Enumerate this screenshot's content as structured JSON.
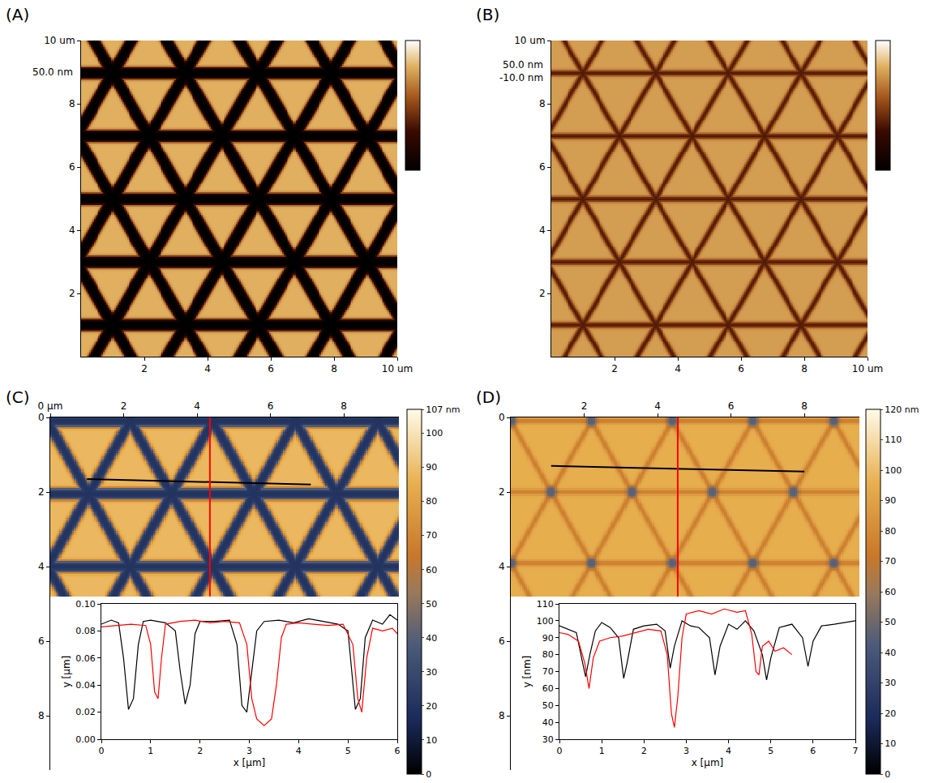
{
  "chart_data": [
    {
      "type": "heatmap",
      "title": "(A)",
      "annotations": [
        "50.0 nm"
      ],
      "xlim": [
        0,
        10
      ],
      "xticks": [
        2,
        4,
        6,
        8,
        {
          "value": 10,
          "label": "10 um"
        }
      ],
      "ylim": [
        0,
        10
      ],
      "yticks": [
        2,
        4,
        6,
        8,
        {
          "value": 10,
          "label": "10 um"
        }
      ],
      "zlim": [
        0,
        50
      ],
      "pattern": {
        "x": [
          0,
          10
        ],
        "y": [
          0,
          10
        ],
        "origin": [
          1,
          1
        ],
        "side": 2.3,
        "groove_width": 0.35,
        "top": 40,
        "groove": 0
      }
    },
    {
      "type": "heatmap",
      "title": "(B)",
      "annotations": [
        "50.0 nm",
        "-10.0 nm"
      ],
      "xlim": [
        0,
        10
      ],
      "xticks": [
        2,
        4,
        6,
        8,
        {
          "value": 10,
          "label": "10 um"
        }
      ],
      "ylim": [
        0,
        10
      ],
      "yticks": [
        2,
        4,
        6,
        8,
        {
          "value": 10,
          "label": "10 um"
        }
      ],
      "zlim": [
        -10,
        50
      ],
      "pattern": {
        "x": [
          0,
          10
        ],
        "y": [
          0,
          10
        ],
        "origin": [
          1,
          1
        ],
        "side": 2.3,
        "groove_width": 0.15,
        "top": 35,
        "groove": 10
      }
    },
    {
      "type": "heatmap",
      "title": "(C)",
      "xlim": [
        0,
        9.5
      ],
      "xticks": [
        {
          "value": 0,
          "label": "0 µm"
        },
        2,
        4,
        6,
        8
      ],
      "ylim": [
        0,
        9.45
      ],
      "yticks": [
        0,
        2,
        4,
        6,
        8
      ],
      "zlim": [
        0,
        107
      ],
      "colorbar_ticks": [
        0,
        10,
        20,
        30,
        40,
        50,
        60,
        70,
        80,
        90,
        100,
        {
          "value": 107,
          "label": "107 nm"
        }
      ],
      "pattern": {
        "x": [
          0,
          9.5
        ],
        "y": [
          0,
          4.8
        ],
        "origin": [
          3.3,
          2.05
        ],
        "side": 2.25,
        "groove_width": 0.3,
        "top": 88,
        "groove": 20
      },
      "profile": {
        "type": "line",
        "xlabel": "x [µm]",
        "ylabel": "y [µm]",
        "xlim": [
          0,
          6
        ],
        "xticks": [
          0,
          1,
          2,
          3,
          4,
          5,
          6
        ],
        "ylim": [
          0,
          0.1
        ],
        "yticks": [
          {
            "value": 0,
            "label": "0.00"
          },
          {
            "value": 0.02,
            "label": "0.02"
          },
          {
            "value": 0.04,
            "label": "0.04"
          },
          {
            "value": 0.06,
            "label": "0.06"
          },
          {
            "value": 0.08,
            "label": "0.08"
          },
          {
            "value": 0.1,
            "label": "0.10"
          }
        ],
        "series": [
          {
            "color": "#000000",
            "line": [
              [
                1.0,
                1.65
              ],
              [
                7.1,
                1.8
              ]
            ],
            "x": [
              0,
              0.2,
              0.35,
              0.45,
              0.55,
              0.65,
              0.75,
              0.85,
              1.0,
              1.3,
              1.5,
              1.6,
              1.7,
              1.8,
              1.9,
              2.0,
              2.3,
              2.6,
              2.75,
              2.85,
              2.95,
              3.05,
              3.15,
              3.3,
              3.6,
              3.9,
              4.2,
              4.5,
              4.8,
              5.0,
              5.1,
              5.15,
              5.25,
              5.35,
              5.5,
              5.7,
              5.85,
              6.0
            ],
            "values": [
              0.085,
              0.088,
              0.086,
              0.06,
              0.022,
              0.03,
              0.07,
              0.087,
              0.088,
              0.086,
              0.08,
              0.05,
              0.026,
              0.04,
              0.078,
              0.087,
              0.087,
              0.088,
              0.07,
              0.025,
              0.02,
              0.05,
              0.08,
              0.087,
              0.088,
              0.086,
              0.089,
              0.087,
              0.085,
              0.08,
              0.04,
              0.022,
              0.03,
              0.075,
              0.088,
              0.085,
              0.092,
              0.088
            ]
          },
          {
            "color": "#ff0000",
            "line": [
              [
                4.35,
                0
              ],
              [
                4.35,
                4.8
              ]
            ],
            "x": [
              0,
              0.3,
              0.6,
              0.9,
              1.0,
              1.08,
              1.15,
              1.22,
              1.3,
              1.6,
              1.9,
              2.2,
              2.5,
              2.8,
              2.95,
              3.05,
              3.15,
              3.3,
              3.45,
              3.55,
              3.65,
              3.75,
              4.0,
              4.3,
              4.6,
              4.9,
              5.1,
              5.2,
              5.28,
              5.38,
              5.5,
              5.7,
              5.9,
              6.0
            ],
            "values": [
              0.083,
              0.084,
              0.085,
              0.084,
              0.07,
              0.035,
              0.03,
              0.06,
              0.085,
              0.087,
              0.088,
              0.086,
              0.087,
              0.086,
              0.07,
              0.03,
              0.015,
              0.01,
              0.015,
              0.04,
              0.075,
              0.085,
              0.086,
              0.085,
              0.084,
              0.085,
              0.07,
              0.03,
              0.02,
              0.06,
              0.082,
              0.08,
              0.082,
              0.078
            ]
          }
        ]
      }
    },
    {
      "type": "heatmap",
      "title": "(D)",
      "xlim": [
        0,
        9.5
      ],
      "xticks": [
        2,
        4,
        6,
        8
      ],
      "ylim": [
        0,
        9.45
      ],
      "yticks": [
        0,
        2,
        4,
        6,
        8
      ],
      "zlim": [
        0,
        120
      ],
      "colorbar_ticks": [
        0,
        10,
        20,
        30,
        40,
        50,
        60,
        70,
        80,
        90,
        100,
        110,
        {
          "value": 120,
          "label": "120 nm"
        }
      ],
      "pattern": {
        "x": [
          0,
          9.5
        ],
        "y": [
          0,
          4.8
        ],
        "origin": [
          3.3,
          2.0
        ],
        "side": 2.2,
        "groove_width": 0.12,
        "top": 95,
        "groove": 72,
        "node": 45,
        "node_width": 0.3
      },
      "profile": {
        "type": "line",
        "xlabel": "x [µm]",
        "ylabel": "y [nm]",
        "xlim": [
          0,
          7
        ],
        "xticks": [
          0,
          1,
          2,
          3,
          4,
          5,
          6,
          7
        ],
        "ylim": [
          30,
          110
        ],
        "yticks": [
          30,
          40,
          50,
          60,
          70,
          80,
          90,
          100,
          110
        ],
        "series": [
          {
            "color": "#000000",
            "line": [
              [
                1.1,
                1.3
              ],
              [
                8.0,
                1.45
              ]
            ],
            "x": [
              0,
              0.2,
              0.4,
              0.55,
              0.62,
              0.72,
              0.85,
              1.0,
              1.2,
              1.4,
              1.52,
              1.6,
              1.75,
              2.0,
              2.3,
              2.5,
              2.62,
              2.72,
              2.9,
              3.1,
              3.3,
              3.55,
              3.68,
              3.8,
              4.0,
              4.2,
              4.4,
              4.6,
              4.8,
              4.9,
              5.0,
              5.2,
              5.5,
              5.75,
              5.88,
              6.0,
              6.2,
              6.5,
              6.8,
              7.0
            ],
            "values": [
              97,
              95,
              93,
              75,
              67,
              80,
              94,
              99,
              96,
              90,
              66,
              75,
              95,
              97,
              98,
              94,
              72,
              85,
              100,
              97,
              96,
              90,
              68,
              85,
              98,
              95,
              100,
              94,
              80,
              65,
              78,
              96,
              98,
              90,
              73,
              88,
              97,
              98,
              99,
              100
            ]
          },
          {
            "color": "#ff0000",
            "line": [
              [
                4.55,
                0
              ],
              [
                4.55,
                4.8
              ]
            ],
            "x": [
              0,
              0.2,
              0.45,
              0.6,
              0.7,
              0.8,
              0.95,
              1.2,
              1.5,
              1.8,
              2.1,
              2.4,
              2.55,
              2.65,
              2.72,
              2.8,
              2.9,
              3.0,
              3.3,
              3.6,
              3.9,
              4.2,
              4.4,
              4.55,
              4.65,
              4.72,
              4.8,
              4.95,
              5.1,
              5.3,
              5.5
            ],
            "values": [
              93,
              92,
              88,
              75,
              60,
              78,
              88,
              90,
              91,
              93,
              95,
              94,
              80,
              45,
              37,
              55,
              90,
              104,
              106,
              104,
              107,
              105,
              106,
              92,
              70,
              68,
              85,
              88,
              82,
              84,
              80
            ]
          }
        ]
      }
    }
  ]
}
